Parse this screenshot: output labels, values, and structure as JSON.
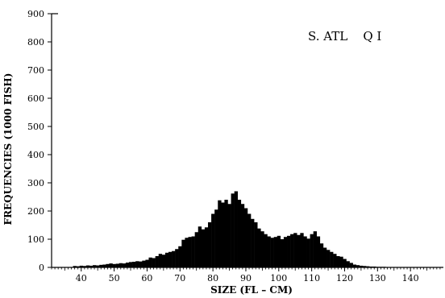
{
  "chart_data": {
    "type": "bar",
    "annotation": "S. ATL    Q I",
    "xlabel": "SIZE (FL – CM)",
    "ylabel": "FREQUENCIES (1000 FISH)",
    "xlim": [
      31,
      150
    ],
    "ylim": [
      0,
      900
    ],
    "x_ticks": [
      40,
      50,
      60,
      70,
      80,
      90,
      100,
      110,
      120,
      130,
      140
    ],
    "y_ticks": [
      0,
      100,
      200,
      300,
      400,
      500,
      600,
      700,
      800,
      900
    ],
    "grid": false,
    "bar_color": "#000000",
    "x": [
      38,
      39,
      40,
      41,
      42,
      43,
      44,
      45,
      46,
      47,
      48,
      49,
      50,
      51,
      52,
      53,
      54,
      55,
      56,
      57,
      58,
      59,
      60,
      61,
      62,
      63,
      64,
      65,
      66,
      67,
      68,
      69,
      70,
      71,
      72,
      73,
      74,
      75,
      76,
      77,
      78,
      79,
      80,
      81,
      82,
      83,
      84,
      85,
      86,
      87,
      88,
      89,
      90,
      91,
      92,
      93,
      94,
      95,
      96,
      97,
      98,
      99,
      100,
      101,
      102,
      103,
      104,
      105,
      106,
      107,
      108,
      109,
      110,
      111,
      112,
      113,
      114,
      115,
      116,
      117,
      118,
      119,
      120,
      121,
      122,
      123,
      124,
      125,
      126,
      127,
      128,
      129,
      130,
      131,
      132,
      133,
      134,
      135,
      136,
      137,
      138,
      139,
      140
    ],
    "values": [
      5,
      4,
      6,
      5,
      7,
      6,
      8,
      7,
      9,
      10,
      12,
      14,
      12,
      13,
      15,
      14,
      17,
      19,
      20,
      22,
      21,
      24,
      27,
      35,
      33,
      40,
      48,
      45,
      52,
      55,
      58,
      65,
      75,
      98,
      105,
      108,
      110,
      125,
      145,
      135,
      142,
      160,
      190,
      205,
      238,
      230,
      240,
      225,
      262,
      270,
      240,
      225,
      210,
      190,
      172,
      160,
      138,
      128,
      118,
      110,
      105,
      108,
      112,
      100,
      108,
      112,
      118,
      122,
      115,
      122,
      110,
      102,
      118,
      128,
      110,
      85,
      70,
      62,
      55,
      48,
      40,
      38,
      30,
      22,
      16,
      10,
      8,
      6,
      5,
      4,
      3,
      3,
      2,
      2,
      2,
      1,
      1,
      1,
      1,
      1,
      1,
      1,
      1
    ]
  }
}
